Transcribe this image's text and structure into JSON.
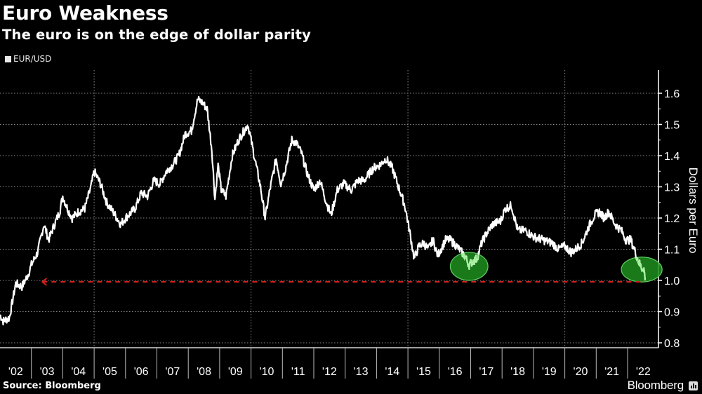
{
  "header": {
    "title": "Euro Weakness",
    "subtitle": "The euro is on the edge of dollar parity"
  },
  "legend": {
    "label": "EUR/USD",
    "swatch_color": "#e8e8e8"
  },
  "footer": {
    "source": "Source: Bloomberg",
    "brand": "Bloomberg"
  },
  "colors": {
    "background": "#000000",
    "line": "#ffffff",
    "highlight_fill": "#1f8f1f",
    "highlight_stroke": "#5fd15f",
    "highlight_line": "#a8f0a0",
    "parity_line": "#d42020",
    "grid": "#8a8a8a"
  },
  "chart_data": {
    "type": "line",
    "title": "Euro Weakness",
    "subtitle": "The euro is on the edge of dollar parity",
    "xlabel": "",
    "ylabel": "Dollars per Euro",
    "ylim": [
      0.8,
      1.65
    ],
    "yticks": [
      0.8,
      0.9,
      1.0,
      1.1,
      1.2,
      1.3,
      1.4,
      1.5,
      1.6
    ],
    "ytick_labels": [
      "0.8",
      "0.9",
      "1.0",
      "1.1",
      "1.2",
      "1.3",
      "1.4",
      "1.5",
      "1.6"
    ],
    "xlim": [
      2002.0,
      2022.95
    ],
    "xtick_labels": [
      "'02",
      "'03",
      "'04",
      "'05",
      "'06",
      "'07",
      "'08",
      "'09",
      "'10",
      "'11",
      "'12",
      "'13",
      "'14",
      "'15",
      "'16",
      "'17",
      "'18",
      "'19",
      "'20",
      "'21",
      "'22"
    ],
    "grid": true,
    "vertical_gridlines_at": [
      2005,
      2010,
      2015,
      2020
    ],
    "legend_position": "top-left",
    "y_axis_position": "right",
    "series": [
      {
        "name": "EUR/USD",
        "x": [
          2002.0,
          2002.1,
          2002.3,
          2002.5,
          2002.7,
          2002.9,
          2003.0,
          2003.2,
          2003.4,
          2003.55,
          2003.7,
          2003.9,
          2004.0,
          2004.15,
          2004.3,
          2004.5,
          2004.7,
          2004.9,
          2005.0,
          2005.2,
          2005.4,
          2005.6,
          2005.85,
          2006.0,
          2006.3,
          2006.5,
          2006.7,
          2006.9,
          2007.1,
          2007.3,
          2007.5,
          2007.7,
          2007.9,
          2008.1,
          2008.3,
          2008.45,
          2008.6,
          2008.75,
          2008.85,
          2008.95,
          2009.05,
          2009.2,
          2009.4,
          2009.6,
          2009.9,
          2010.1,
          2010.3,
          2010.45,
          2010.6,
          2010.8,
          2010.95,
          2011.1,
          2011.3,
          2011.45,
          2011.6,
          2011.8,
          2012.0,
          2012.2,
          2012.4,
          2012.55,
          2012.75,
          2012.95,
          2013.2,
          2013.4,
          2013.6,
          2013.9,
          2014.1,
          2014.3,
          2014.5,
          2014.7,
          2014.9,
          2015.05,
          2015.2,
          2015.35,
          2015.5,
          2015.65,
          2015.8,
          2015.95,
          2016.2,
          2016.35,
          2016.55,
          2016.8,
          2016.95,
          2017.05,
          2017.2,
          2017.35,
          2017.5,
          2017.7,
          2017.95,
          2018.1,
          2018.3,
          2018.5,
          2018.75,
          2019.0,
          2019.3,
          2019.6,
          2019.8,
          2020.0,
          2020.2,
          2020.35,
          2020.55,
          2020.75,
          2020.95,
          2021.1,
          2021.25,
          2021.4,
          2021.6,
          2021.8,
          2021.95,
          2022.1,
          2022.25,
          2022.35,
          2022.45,
          2022.52,
          2022.56
        ],
        "values": [
          0.89,
          0.87,
          0.88,
          0.99,
          0.98,
          1.02,
          1.05,
          1.09,
          1.18,
          1.13,
          1.17,
          1.22,
          1.27,
          1.23,
          1.2,
          1.22,
          1.23,
          1.3,
          1.35,
          1.31,
          1.25,
          1.22,
          1.18,
          1.2,
          1.23,
          1.28,
          1.27,
          1.32,
          1.31,
          1.35,
          1.37,
          1.4,
          1.47,
          1.48,
          1.58,
          1.57,
          1.55,
          1.42,
          1.26,
          1.37,
          1.29,
          1.27,
          1.4,
          1.45,
          1.5,
          1.4,
          1.3,
          1.2,
          1.29,
          1.39,
          1.31,
          1.36,
          1.45,
          1.44,
          1.41,
          1.34,
          1.29,
          1.32,
          1.25,
          1.21,
          1.29,
          1.31,
          1.29,
          1.32,
          1.32,
          1.36,
          1.37,
          1.39,
          1.36,
          1.3,
          1.24,
          1.16,
          1.07,
          1.11,
          1.12,
          1.1,
          1.13,
          1.08,
          1.13,
          1.13,
          1.11,
          1.08,
          1.05,
          1.06,
          1.07,
          1.12,
          1.15,
          1.18,
          1.19,
          1.23,
          1.24,
          1.16,
          1.16,
          1.14,
          1.13,
          1.12,
          1.1,
          1.11,
          1.09,
          1.1,
          1.12,
          1.17,
          1.21,
          1.22,
          1.2,
          1.22,
          1.18,
          1.16,
          1.13,
          1.13,
          1.09,
          1.06,
          1.04,
          1.04,
          1.0
        ]
      }
    ],
    "annotations": [
      {
        "type": "dashed-line",
        "y": 1.0,
        "x_from": 2003.35,
        "x_to": 2022.55,
        "color": "#d42020",
        "arrow": "left",
        "label": "parity"
      },
      {
        "type": "ellipse",
        "cx": 2016.95,
        "cy": 1.045,
        "rx_years": 0.6,
        "ry": 0.045,
        "note": "2017 low near parity"
      },
      {
        "type": "ellipse",
        "cx": 2022.45,
        "cy": 1.035,
        "rx_years": 0.65,
        "ry": 0.04,
        "note": "2022 drop to parity"
      }
    ]
  }
}
